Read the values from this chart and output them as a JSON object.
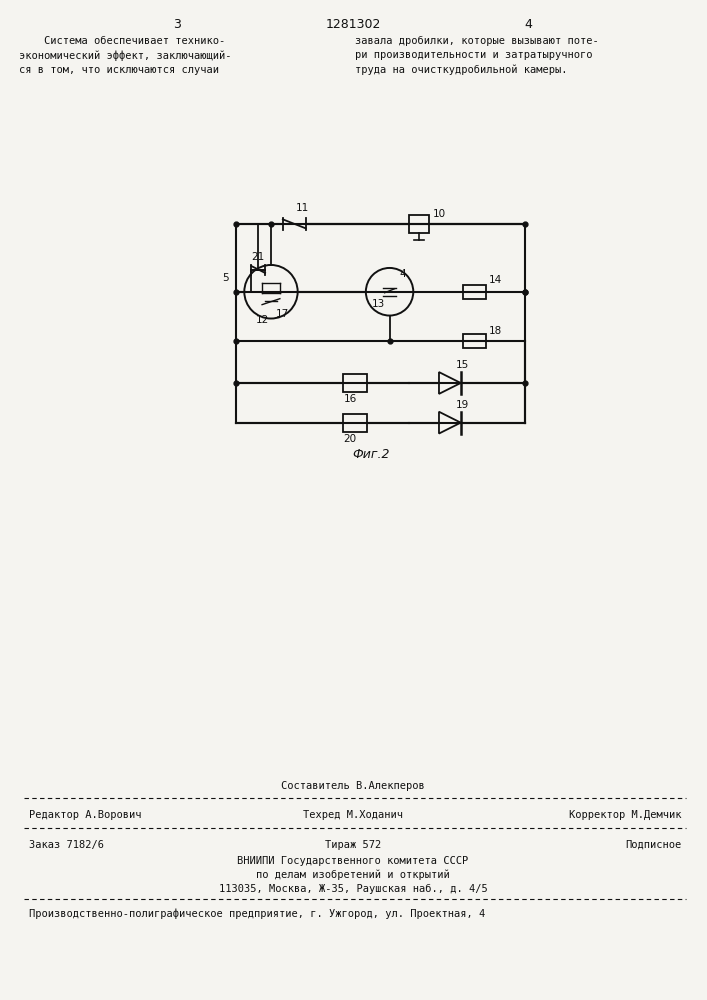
{
  "bg_color": "#f5f4f0",
  "page_width": 7.07,
  "page_height": 10.0,
  "header_page_left": "3",
  "header_title": "1281302",
  "header_page_right": "4",
  "text_left": "    Система обеспечивает технико-\nэкономический эффект, заключающий-\nся в том, что исключаются случаи\n ",
  "text_right": "завала дробилки, которые вызывают поте-\nри производительности и затратыручного\nтруда на очисткудробильной камеры.",
  "fig_label": "Фиг.2",
  "footer_compositor": "Составитель В.Алекперов",
  "footer_editor": "Редактор А.Ворович",
  "footer_techred": "Техред М.Ходанич",
  "footer_corrector": "Корректор М.Демчик",
  "footer_order": "Заказ 7182/6",
  "footer_tirazh": "Тираж 572",
  "footer_podpisnoe": "Подписное",
  "footer_vniip1": "ВНИИПИ Государственного комитета СССР",
  "footer_vniip2": "по делам изобретений и открытий",
  "footer_vniip3": "113035, Москва, Ж-35, Раушская наб., д. 4/5",
  "footer_last": "Производственно-полиграфическое предприятие, г. Ужгород, ул. Проектная, 4"
}
